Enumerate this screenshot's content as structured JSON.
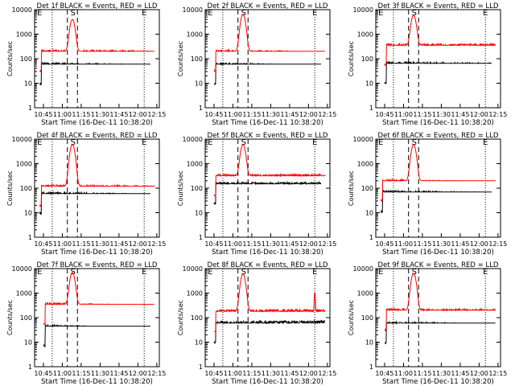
{
  "figure": {
    "start_time_label": "Start Time (16-Dec-11 10:38:20)",
    "x_ticks": [
      "10:45",
      "11:00",
      "11:15",
      "11:30",
      "11:45",
      "12:00",
      "12:15"
    ],
    "y_ticks": [
      "1",
      "10",
      "100",
      "1000",
      "10000"
    ],
    "ylabel": "Counts/sec",
    "marker_labels": [
      "E",
      "S",
      "E"
    ],
    "colors": {
      "events": "#000000",
      "lld": "#ff0000"
    }
  },
  "chart_data": [
    {
      "type": "line",
      "title": "Det 1f BLACK = Events, RED = LLD",
      "xlabel": "Start Time (16-Dec-11 10:38:20)",
      "ylabel": "Counts/sec",
      "yscale": "log",
      "ylim": [
        1,
        10000
      ],
      "xlim": [
        "10:38",
        "12:17"
      ],
      "series": [
        {
          "name": "Events",
          "color": "#000000",
          "start": "10:42",
          "end": "12:10",
          "base": 60,
          "peak": 60,
          "drift": -0.15
        },
        {
          "name": "LLD",
          "color": "#ff0000",
          "start": "10:42",
          "end": "12:13",
          "base": 200,
          "peak": 4000,
          "drift": -0.1
        }
      ]
    },
    {
      "type": "line",
      "title": "Det 2f BLACK = Events, RED = LLD",
      "xlabel": "Start Time (16-Dec-11 10:38:20)",
      "ylabel": "Counts/sec",
      "yscale": "log",
      "ylim": [
        1,
        10000
      ],
      "xlim": [
        "10:38",
        "12:17"
      ],
      "series": [
        {
          "name": "Events",
          "color": "#000000",
          "start": "10:45",
          "end": "12:10",
          "base": 60,
          "peak": 60,
          "drift": -0.2
        },
        {
          "name": "LLD",
          "color": "#ff0000",
          "start": "10:45",
          "end": "12:13",
          "base": 200,
          "peak": 6500,
          "drift": -0.15
        }
      ]
    },
    {
      "type": "line",
      "title": "Det 3f BLACK = Events, RED = LLD",
      "xlabel": "Start Time (16-Dec-11 10:38:20)",
      "ylabel": "Counts/sec",
      "yscale": "log",
      "ylim": [
        1,
        10000
      ],
      "xlim": [
        "10:38",
        "12:17"
      ],
      "series": [
        {
          "name": "Events",
          "color": "#000000",
          "start": "10:45",
          "end": "12:10",
          "base": 65,
          "peak": 65,
          "drift": -0.1
        },
        {
          "name": "LLD",
          "color": "#ff0000",
          "start": "10:45",
          "end": "12:13",
          "base": 350,
          "peak": 6000,
          "drift": 0
        }
      ]
    },
    {
      "type": "line",
      "title": "Det 4f BLACK = Events, RED = LLD",
      "xlabel": "Start Time (16-Dec-11 10:38:20)",
      "ylabel": "Counts/sec",
      "yscale": "log",
      "ylim": [
        1,
        10000
      ],
      "xlim": [
        "10:38",
        "12:17"
      ],
      "series": [
        {
          "name": "Events",
          "color": "#000000",
          "start": "10:42",
          "end": "12:10",
          "base": 60,
          "peak": 60,
          "drift": -0.15
        },
        {
          "name": "LLD",
          "color": "#ff0000",
          "start": "10:42",
          "end": "12:13",
          "base": 120,
          "peak": 6000,
          "drift": -0.1
        }
      ]
    },
    {
      "type": "line",
      "title": "Det 5f BLACK = Events, RED = LLD",
      "xlabel": "Start Time (16-Dec-11 10:38:20)",
      "ylabel": "Counts/sec",
      "yscale": "log",
      "ylim": [
        1,
        10000
      ],
      "xlim": [
        "10:38",
        "12:17"
      ],
      "series": [
        {
          "name": "Events",
          "color": "#000000",
          "start": "10:45",
          "end": "12:10",
          "base": 150,
          "peak": 150,
          "drift": 0
        },
        {
          "name": "LLD",
          "color": "#ff0000",
          "start": "10:45",
          "end": "12:13",
          "base": 320,
          "peak": 6000,
          "drift": 0
        }
      ]
    },
    {
      "type": "line",
      "title": "Det 6f BLACK = Events, RED = LLD",
      "xlabel": "Start Time (16-Dec-11 10:38:20)",
      "ylabel": "Counts/sec",
      "yscale": "log",
      "ylim": [
        1,
        10000
      ],
      "xlim": [
        "10:38",
        "12:17"
      ],
      "series": [
        {
          "name": "Events",
          "color": "#000000",
          "start": "10:42",
          "end": "12:10",
          "base": 70,
          "peak": 70,
          "drift": -0.15
        },
        {
          "name": "LLD",
          "color": "#ff0000",
          "start": "10:42",
          "end": "12:13",
          "base": 200,
          "peak": 6000,
          "drift": -0.2
        }
      ]
    },
    {
      "type": "line",
      "title": "Det 7f BLACK = Events, RED = LLD",
      "xlabel": "Start Time (16-Dec-11 10:38:20)",
      "ylabel": "Counts/sec",
      "yscale": "log",
      "ylim": [
        1,
        10000
      ],
      "xlim": [
        "10:38",
        "12:17"
      ],
      "series": [
        {
          "name": "Events",
          "color": "#000000",
          "start": "10:45",
          "end": "12:10",
          "base": 45,
          "peak": 45,
          "drift": -0.3
        },
        {
          "name": "LLD",
          "color": "#ff0000",
          "start": "10:45",
          "end": "12:13",
          "base": 350,
          "peak": 7000,
          "drift": -0.2
        }
      ]
    },
    {
      "type": "line",
      "title": "Det 8f BLACK = Events, RED = LLD",
      "xlabel": "Start Time (16-Dec-11 10:38:20)",
      "ylabel": "Counts/sec",
      "yscale": "log",
      "ylim": [
        1,
        10000
      ],
      "xlim": [
        "10:38",
        "12:17"
      ],
      "series": [
        {
          "name": "Events",
          "color": "#000000",
          "start": "10:45",
          "end": "12:13",
          "base": 60,
          "peak": 60,
          "drift": 0.1
        },
        {
          "name": "LLD",
          "color": "#ff0000",
          "start": "10:45",
          "end": "12:13",
          "base": 180,
          "peak": 6000,
          "drift": 0.05,
          "spike_at": "12:05",
          "spike": 1100
        }
      ]
    },
    {
      "type": "line",
      "title": "Det 9f BLACK = Events, RED = LLD",
      "xlabel": "Start Time (16-Dec-11 10:38:20)",
      "ylabel": "Counts/sec",
      "yscale": "log",
      "ylim": [
        1,
        10000
      ],
      "xlim": [
        "10:38",
        "12:17"
      ],
      "series": [
        {
          "name": "Events",
          "color": "#000000",
          "start": "10:45",
          "end": "12:13",
          "base": 60,
          "peak": 60,
          "drift": -0.2
        },
        {
          "name": "LLD",
          "color": "#ff0000",
          "start": "10:45",
          "end": "12:13",
          "base": 200,
          "peak": 6500,
          "drift": -0.05
        }
      ]
    }
  ],
  "markers": {
    "dotted": [
      "10:52",
      "12:05"
    ],
    "dashed": [
      "11:04",
      "11:12"
    ],
    "flare_peak": "11:08"
  }
}
